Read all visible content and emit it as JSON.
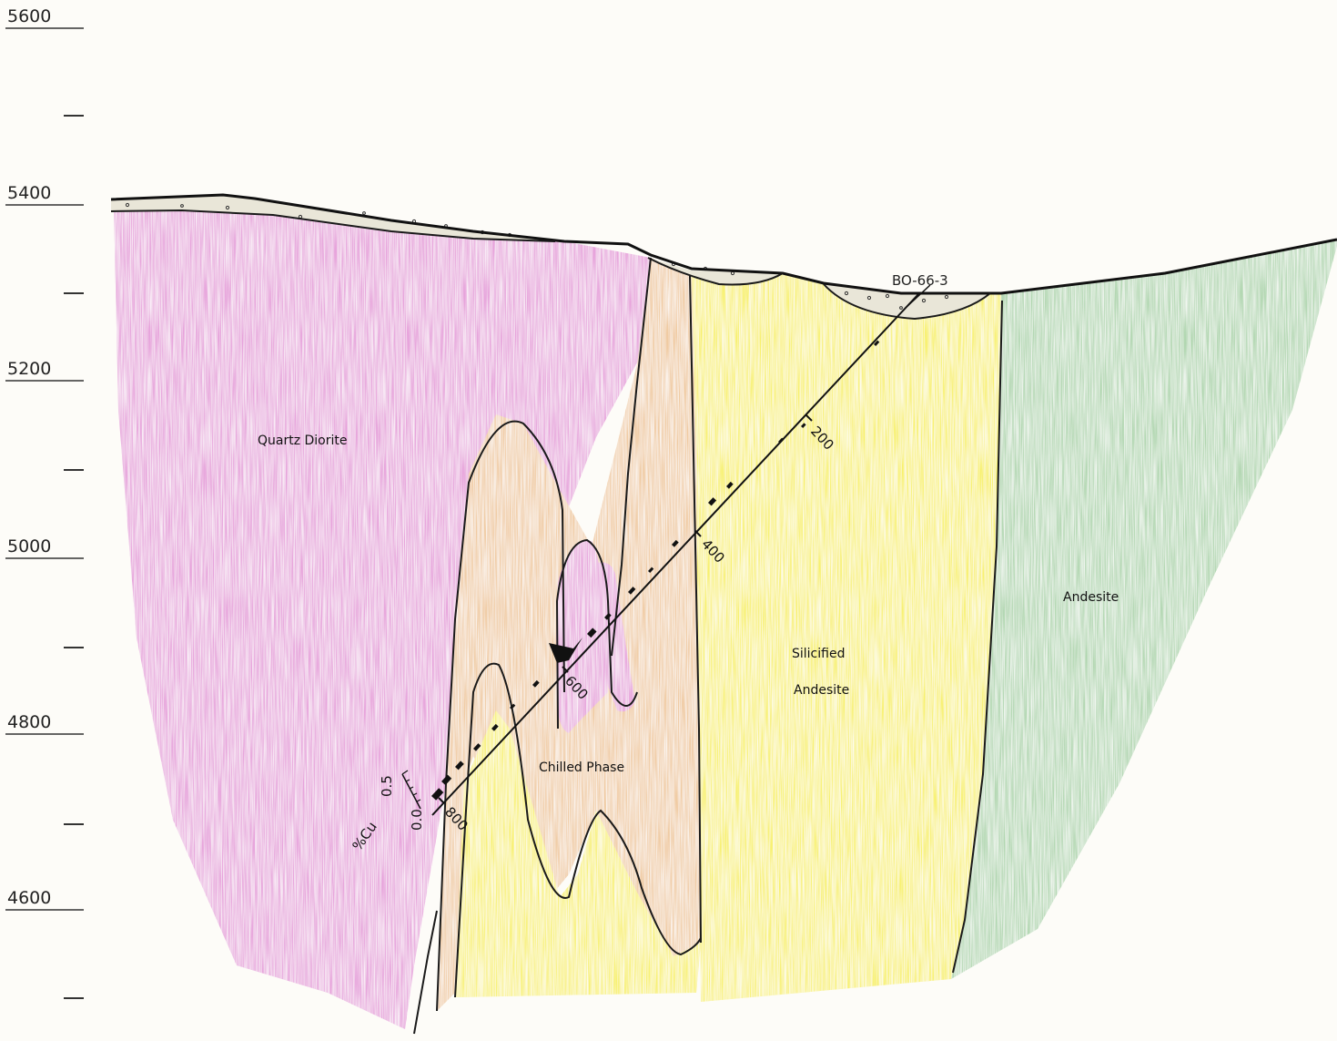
{
  "elevation_axis": {
    "labels": [
      "5600",
      "5400",
      "5200",
      "5000",
      "4800",
      "4600"
    ]
  },
  "units": [
    {
      "name": "Quartz Diorite",
      "color": "#e59ad9"
    },
    {
      "name": "Chilled Phase",
      "color": "#efc699"
    },
    {
      "name": "Silicified Andesite",
      "lines": [
        "Silicified",
        "Andesite"
      ],
      "color": "#f8f060"
    },
    {
      "name": "Andesite",
      "color": "#a9d3a9"
    }
  ],
  "overburden_color": "#e9e6d8",
  "drill_hole": {
    "id": "BO-66-3",
    "depth_labels": [
      "200",
      "400",
      "600",
      "800"
    ]
  },
  "assay_scale": {
    "max_label": "0.5",
    "min_label": "0.0",
    "unit_label": "%Cu"
  }
}
